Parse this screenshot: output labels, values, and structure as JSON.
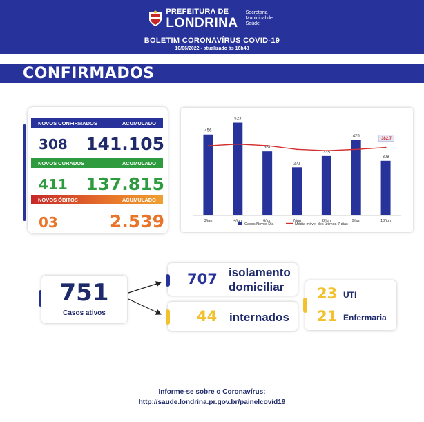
{
  "header": {
    "pref_line1": "PREFEITURA DE",
    "pref_line2": "LONDRINA",
    "secretaria": "Secretaria Municipal de Saúde",
    "title": "BOLETIM CORONAVÍRUS COVID-19",
    "date": "10/06/2022 - atualizado às 16h48"
  },
  "section": {
    "title": "CONFIRMADOS"
  },
  "stats": {
    "confirmados": {
      "label": "NOVOS CONFIRMADOS",
      "acc_label": "ACUMULADO",
      "new": "308",
      "total": "141.105",
      "color": "#27339a",
      "text_color": "#1f2a6b"
    },
    "curados": {
      "label": "NOVOS CURADOS",
      "acc_label": "ACUMULADO",
      "new": "411",
      "total": "137.815",
      "color": "#2e9c3e",
      "text_color": "#2e9c3e"
    },
    "obitos": {
      "label": "NOVOS ÓBITOS",
      "acc_label": "ACUMULADO",
      "new": "03",
      "total": "2.539",
      "color": "#e8752a",
      "text_color": "#e8752a"
    }
  },
  "chart_data": {
    "type": "bar",
    "categories": [
      "3/jun",
      "4/jun",
      "6/jun",
      "7/jun",
      "8/jun",
      "9/jun",
      "10/jun"
    ],
    "series": [
      {
        "name": "Casos Novos Dia",
        "type": "bar",
        "values": [
          456,
          523,
          361,
          271,
          335,
          425,
          308
        ],
        "color": "#27339a"
      },
      {
        "name": "Média móvel dos últimos 7 dias",
        "type": "line",
        "values": [
          392,
          402,
          393,
          372,
          365,
          372,
          382.7
        ],
        "color": "#d32f2f"
      }
    ],
    "annotation": "382,7",
    "ylim": [
      0,
      560
    ]
  },
  "ativos": {
    "value": "751",
    "label": "Casos ativos"
  },
  "isolamento": {
    "value": "707",
    "label_line1": "isolamento",
    "label_line2": "domiciliar"
  },
  "internados": {
    "value": "44",
    "label": "internados"
  },
  "uti": {
    "value": "23",
    "label": "UTI"
  },
  "enfermaria": {
    "value": "21",
    "label": "Enfermaria"
  },
  "colors": {
    "navy": "#1f2a6b",
    "yellow": "#f2c12e",
    "blue": "#27339a"
  },
  "footer": {
    "line1": "Informe-se sobre o Coronavírus:",
    "line2": "http://saude.londrina.pr.gov.br/painelcovid19"
  }
}
